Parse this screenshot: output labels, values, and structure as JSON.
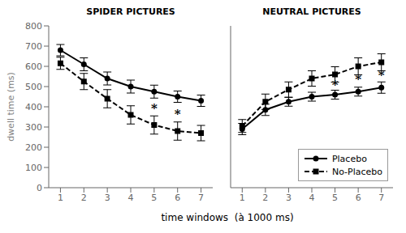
{
  "chart_data": [
    {
      "type": "line",
      "title": "SPIDER PICTURES",
      "ylabel": "dwell time (ms)",
      "xlabel": "time windows  (à 1000 ms)",
      "x": [
        1,
        2,
        3,
        4,
        5,
        6,
        7
      ],
      "xlim": [
        0.5,
        7.5
      ],
      "xticks": [
        1,
        2,
        3,
        4,
        5,
        6,
        7
      ],
      "ylim": [
        0,
        800
      ],
      "yticks": [
        0,
        100,
        200,
        300,
        400,
        500,
        600,
        700,
        800
      ],
      "grid": false,
      "legend": false,
      "series": [
        {
          "name": "Placebo",
          "color": "#000000",
          "line_style": "solid",
          "marker": "circle",
          "values": [
            680,
            610,
            540,
            500,
            475,
            450,
            430
          ],
          "error": [
            28,
            32,
            32,
            32,
            32,
            28,
            28
          ]
        },
        {
          "name": "No-Placebo",
          "color": "#000000",
          "line_style": "dashed",
          "marker": "square",
          "values": [
            615,
            525,
            440,
            360,
            310,
            280,
            270
          ],
          "error": [
            30,
            40,
            45,
            45,
            45,
            45,
            38
          ]
        }
      ],
      "annotations": [
        {
          "x": 5,
          "y": 392.5,
          "text": "*"
        },
        {
          "x": 6,
          "y": 365,
          "text": "*"
        }
      ]
    },
    {
      "type": "line",
      "title": "NEUTRAL PICTURES",
      "x": [
        1,
        2,
        3,
        4,
        5,
        6,
        7
      ],
      "xlim": [
        0.5,
        7.5
      ],
      "xticks": [
        1,
        2,
        3,
        4,
        5,
        6,
        7
      ],
      "ylim": [
        0,
        800
      ],
      "yticks": [
        0,
        100,
        200,
        300,
        400,
        500,
        600,
        700,
        800
      ],
      "grid": false,
      "tick_labels": "x",
      "legend": "lower right",
      "series": [
        {
          "name": "Placebo",
          "color": "#000000",
          "line_style": "solid",
          "marker": "circle",
          "values": [
            290,
            385,
            425,
            450,
            460,
            475,
            495
          ],
          "error": [
            28,
            28,
            22,
            22,
            22,
            22,
            28
          ]
        },
        {
          "name": "No-Placebo",
          "color": "#000000",
          "line_style": "dashed",
          "marker": "square",
          "values": [
            305,
            425,
            485,
            540,
            560,
            600,
            620
          ],
          "error": [
            32,
            38,
            38,
            38,
            38,
            42,
            42
          ]
        }
      ],
      "annotations": [
        {
          "x": 5,
          "y": 510,
          "text": "*"
        },
        {
          "x": 6,
          "y": 537.5,
          "text": "*"
        },
        {
          "x": 7,
          "y": 557.5,
          "text": "*"
        }
      ]
    }
  ]
}
